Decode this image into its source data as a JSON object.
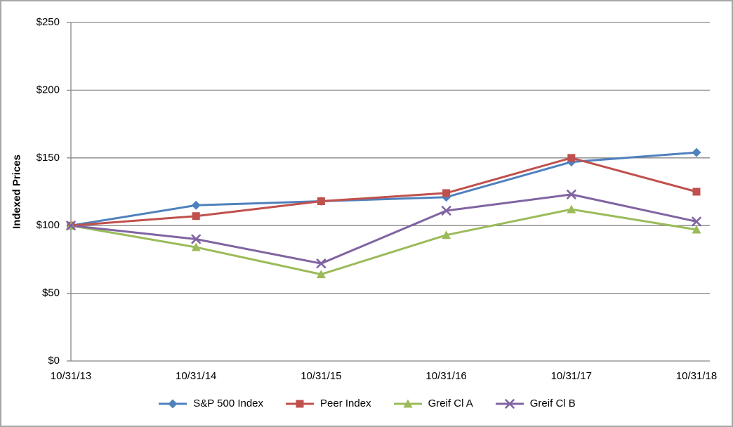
{
  "chart_data": {
    "type": "line",
    "title": "",
    "xlabel": "",
    "ylabel": "Indexed Prices",
    "ylim": [
      0,
      250
    ],
    "y_tick_interval": 50,
    "y_ticks": [
      "$0",
      "$50",
      "$100",
      "$150",
      "$200",
      "$250"
    ],
    "categories": [
      "10/31/13",
      "10/31/14",
      "10/31/15",
      "10/31/16",
      "10/31/17",
      "10/31/18"
    ],
    "grid": true,
    "legend_position": "bottom",
    "series": [
      {
        "name": "S&P 500 Index",
        "color": "#4F81BD",
        "marker": "diamond",
        "values": [
          100,
          115,
          118,
          121,
          147,
          154
        ]
      },
      {
        "name": "Peer Index",
        "color": "#C0504D",
        "marker": "square",
        "values": [
          100,
          107,
          118,
          124,
          150,
          125
        ]
      },
      {
        "name": "Greif Cl A",
        "color": "#9BBB59",
        "marker": "triangle",
        "values": [
          100,
          84,
          64,
          93,
          112,
          97
        ]
      },
      {
        "name": "Greif Cl B",
        "color": "#8064A2",
        "marker": "x",
        "values": [
          100,
          90,
          72,
          111,
          123,
          103
        ]
      }
    ],
    "colors": {
      "axis": "#878787",
      "gridline": "#878787",
      "text": "#000000"
    }
  }
}
